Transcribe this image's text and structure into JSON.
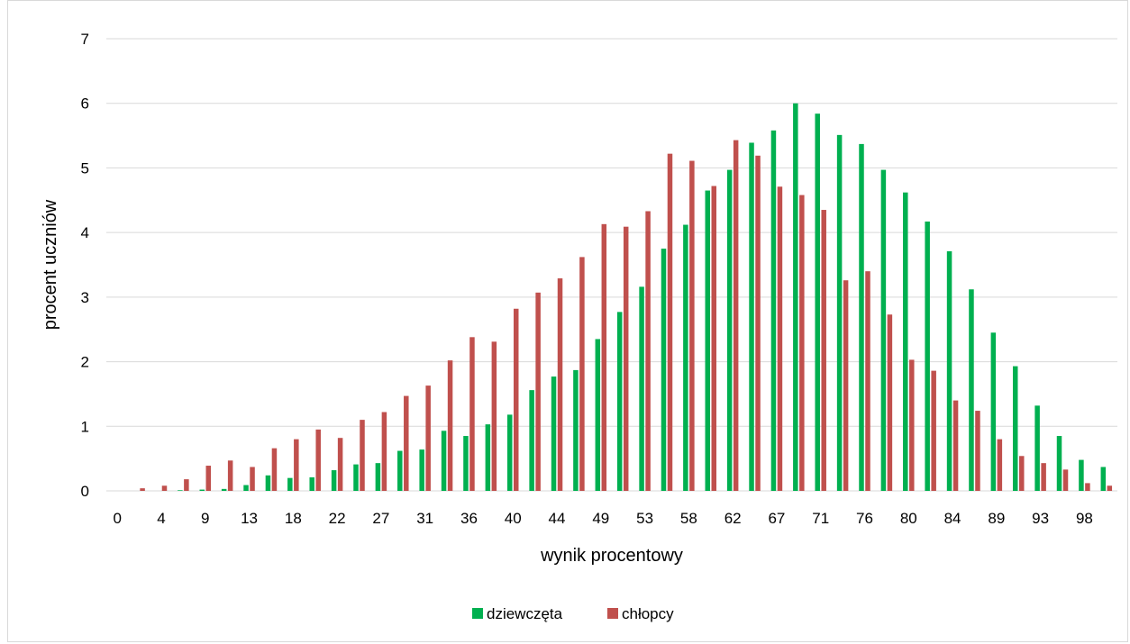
{
  "chart_data": {
    "type": "bar",
    "title": "",
    "xlabel": "wynik procentowy",
    "ylabel": "procent uczniów",
    "ylim": [
      0,
      7
    ],
    "yticks": [
      0,
      1,
      2,
      3,
      4,
      5,
      6,
      7
    ],
    "grid": true,
    "legend_position": "bottom",
    "x_tick_labels": [
      "0",
      "4",
      "9",
      "13",
      "18",
      "22",
      "27",
      "31",
      "36",
      "40",
      "44",
      "49",
      "53",
      "58",
      "62",
      "67",
      "71",
      "76",
      "80",
      "84",
      "89",
      "93",
      "98"
    ],
    "categories": [
      "0",
      "2",
      "4",
      "7",
      "9",
      "11",
      "13",
      "16",
      "18",
      "20",
      "22",
      "24",
      "27",
      "29",
      "31",
      "33",
      "36",
      "38",
      "40",
      "42",
      "44",
      "47",
      "49",
      "51",
      "53",
      "56",
      "58",
      "60",
      "62",
      "64",
      "67",
      "69",
      "71",
      "73",
      "76",
      "78",
      "80",
      "82",
      "84",
      "87",
      "89",
      "91",
      "93",
      "96",
      "98",
      "100"
    ],
    "series": [
      {
        "name": "dziewczęta",
        "color": "#00b050",
        "values": [
          0.0,
          0.0,
          0.0,
          0.01,
          0.02,
          0.03,
          0.09,
          0.24,
          0.2,
          0.21,
          0.32,
          0.41,
          0.43,
          0.62,
          0.64,
          0.93,
          0.85,
          1.03,
          1.18,
          1.56,
          1.77,
          1.87,
          2.35,
          2.77,
          3.16,
          3.75,
          4.12,
          4.65,
          4.97,
          5.39,
          5.58,
          6.0,
          5.84,
          5.51,
          5.37,
          4.97,
          4.62,
          4.17,
          3.71,
          3.12,
          2.45,
          1.93,
          1.32,
          0.85,
          0.48,
          0.37
        ]
      },
      {
        "name": "chłopcy",
        "color": "#c0504d",
        "values": [
          0.0,
          0.04,
          0.08,
          0.18,
          0.39,
          0.47,
          0.37,
          0.66,
          0.8,
          0.95,
          0.82,
          1.1,
          1.22,
          1.47,
          1.63,
          2.02,
          2.38,
          2.31,
          2.82,
          3.07,
          3.29,
          3.62,
          4.13,
          4.09,
          4.33,
          5.22,
          5.11,
          4.72,
          5.43,
          5.19,
          4.71,
          4.58,
          4.35,
          3.26,
          3.4,
          2.73,
          2.03,
          1.86,
          1.4,
          1.24,
          0.8,
          0.54,
          0.43,
          0.33,
          0.12,
          0.08
        ]
      }
    ]
  }
}
